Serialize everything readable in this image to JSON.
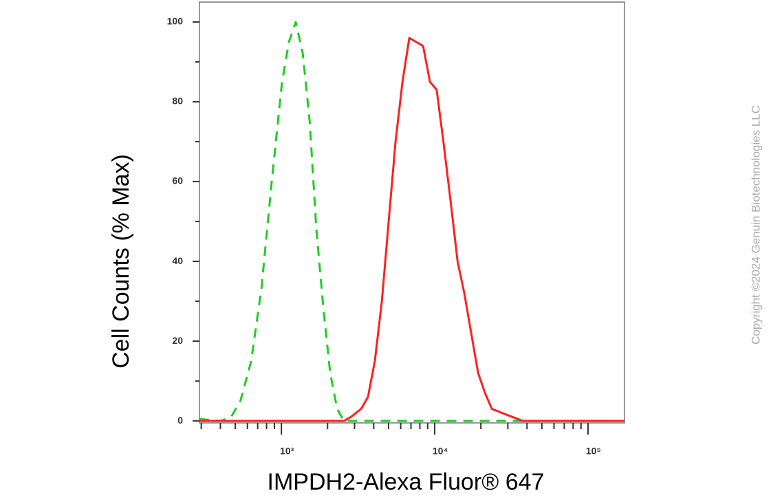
{
  "chart_data": {
    "type": "line",
    "ylabel": "Cell Counts (% Max)",
    "xlabel": "IMPDH2-Alexa Fluor® 647",
    "watermark": "Copyright ©2024 Genuin Biotechnologies LLC",
    "xscale": "log",
    "xlim": [
      292,
      173000
    ],
    "xticks": [
      {
        "value": 1000,
        "label": "10³"
      },
      {
        "value": 10000,
        "label": "10⁴"
      },
      {
        "value": 100000,
        "label": "10⁵"
      }
    ],
    "xminorticks": [
      300,
      400,
      500,
      600,
      700,
      800,
      900,
      2000,
      3000,
      4000,
      5000,
      6000,
      7000,
      8000,
      9000,
      20000,
      30000,
      40000,
      50000,
      60000,
      70000,
      80000,
      90000
    ],
    "ylim": [
      -0.5,
      105
    ],
    "yticks": [
      0,
      20,
      40,
      60,
      80,
      100
    ],
    "yminorticks": [
      10,
      30,
      50,
      70,
      90
    ],
    "series": [
      {
        "color": "#22cc22",
        "linestyle": "dashed",
        "x": [
          293,
          400,
          470,
          540,
          635,
          740,
          865,
          1010,
          1120,
          1240,
          1380,
          1530,
          1690,
          1880,
          2080,
          2310,
          2560,
          7200,
          143000
        ],
        "values": [
          0.5,
          0,
          1,
          5,
          15,
          33,
          60,
          85,
          95,
          100,
          92,
          75,
          48,
          28,
          12,
          3,
          0,
          0,
          0
        ]
      },
      {
        "color": "#ff2020",
        "linestyle": "solid",
        "x": [
          293,
          2560,
          2840,
          3310,
          3670,
          4070,
          4520,
          5010,
          5550,
          6160,
          6830,
          7570,
          8400,
          9310,
          10300,
          11400,
          12700,
          14100,
          15600,
          17300,
          19200,
          21300,
          23600,
          27500,
          32100,
          37500,
          172000
        ],
        "values": [
          0,
          0,
          1,
          3,
          6,
          15,
          30,
          50,
          70,
          85,
          96,
          95,
          94,
          85,
          83,
          70,
          55,
          40,
          32,
          22,
          12,
          7,
          3,
          2,
          1,
          0,
          0
        ]
      }
    ]
  }
}
